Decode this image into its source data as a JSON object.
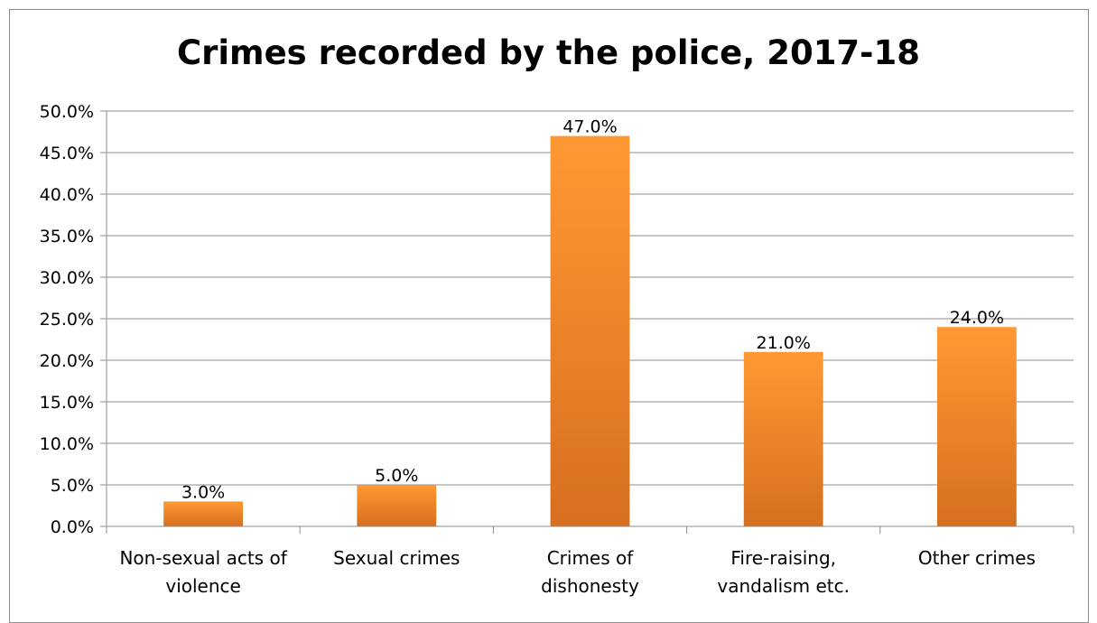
{
  "chart_data": {
    "type": "bar",
    "title": "Crimes recorded by the police, 2017-18",
    "xlabel": "",
    "ylabel": "",
    "categories": [
      [
        "Non-sexual acts of",
        "violence"
      ],
      [
        "Sexual crimes"
      ],
      [
        "Crimes of",
        "dishonesty"
      ],
      [
        "Fire-raising,",
        "vandalism etc."
      ],
      [
        "Other crimes"
      ]
    ],
    "values": [
      3.0,
      5.0,
      47.0,
      21.0,
      24.0
    ],
    "data_labels": [
      "3.0%",
      "5.0%",
      "47.0%",
      "21.0%",
      "24.0%"
    ],
    "ylim": [
      0,
      50
    ],
    "yticks": [
      0,
      5,
      10,
      15,
      20,
      25,
      30,
      35,
      40,
      45,
      50
    ],
    "ytick_labels": [
      "0.0%",
      "5.0%",
      "10.0%",
      "15.0%",
      "20.0%",
      "25.0%",
      "30.0%",
      "35.0%",
      "40.0%",
      "45.0%",
      "50.0%"
    ],
    "grid": true,
    "legend": "none",
    "colors": {
      "bar_top": "#ff9933",
      "bar_bottom": "#d66f1f",
      "grid": "#8c8c8c",
      "axis": "#8c8c8c"
    }
  }
}
